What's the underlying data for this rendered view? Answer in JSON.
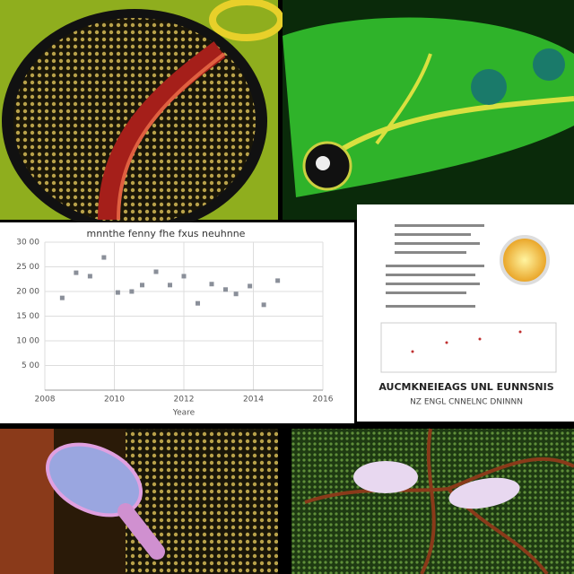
{
  "chart_data": {
    "type": "scatter",
    "title": "mnnthe fenny fhe fxus neuhnne",
    "x_label": "Yeare",
    "x": [
      2008.5,
      2008.9,
      2009.3,
      2009.7,
      2010.1,
      2010.5,
      2010.8,
      2011.2,
      2011.6,
      2012.0,
      2012.4,
      2012.8,
      2013.2,
      2013.5,
      2013.9,
      2014.3,
      2014.7
    ],
    "values": [
      18.7,
      23.8,
      23.1,
      26.9,
      19.8,
      20.0,
      21.3,
      24.0,
      21.3,
      23.1,
      17.6,
      21.5,
      20.4,
      19.5,
      21.1,
      17.3,
      22.2
    ],
    "color": "#8a8f99",
    "xlim": [
      2008,
      2016
    ],
    "xticks": [
      2008,
      2010,
      2012,
      2014,
      2016
    ],
    "ylim": [
      0,
      30
    ],
    "yticks": [
      {
        "value": 5,
        "label": "5 00"
      },
      {
        "value": 10,
        "label": "10 00"
      },
      {
        "value": 15,
        "label": "15 00"
      },
      {
        "value": 20,
        "label": "20 00"
      },
      {
        "value": 25,
        "label": "25 00"
      },
      {
        "value": 30,
        "label": "30 00"
      }
    ],
    "grid": true
  },
  "document": {
    "heading": "AUCMKNEIEAGS UNL EUNNSNIS",
    "subheading": "NZ ENGL CNNELNC DNINNN"
  }
}
